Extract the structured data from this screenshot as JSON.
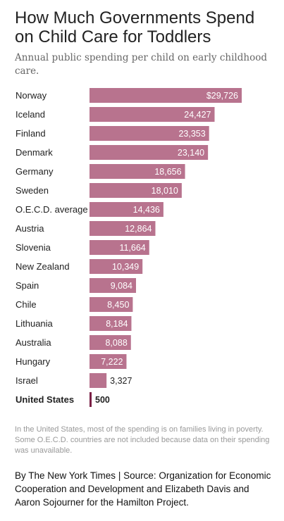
{
  "title": "How Much Governments Spend on Child Care for Toddlers",
  "subtitle": "Annual public spending per child on early childhood care.",
  "note": "In the United States, most of the spending is on families living in poverty. Some O.E.C.D. countries are not included because data on their spending was unavailable.",
  "credit": "By The New York Times | Source: Organization for Economic Cooperation and Development and Elizabeth Davis and Aaron Sojourner for the Hamilton Project.",
  "colors": {
    "bar": "#b8738e",
    "highlight_bar": "#7a1f45",
    "label_text": "#222222"
  },
  "chart_data": {
    "type": "bar",
    "orientation": "horizontal",
    "categories": [
      "Norway",
      "Iceland",
      "Finland",
      "Denmark",
      "Germany",
      "Sweden",
      "O.E.C.D. average",
      "Austria",
      "Slovenia",
      "New Zealand",
      "Spain",
      "Chile",
      "Lithuania",
      "Australia",
      "Hungary",
      "Israel",
      "United States"
    ],
    "values": [
      29726,
      24427,
      23353,
      23140,
      18656,
      18010,
      14436,
      12864,
      11664,
      10349,
      9084,
      8450,
      8184,
      8088,
      7222,
      3327,
      500
    ],
    "value_labels": [
      "$29,726",
      "24,427",
      "23,353",
      "23,140",
      "18,656",
      "18,010",
      "14,436",
      "12,864",
      "11,664",
      "10,349",
      "9,084",
      "8,450",
      "8,184",
      "8,088",
      "7,222",
      "3,327",
      "500"
    ],
    "highlight": "United States",
    "xlim": [
      0,
      30000
    ],
    "grid": false,
    "legend": "none"
  }
}
